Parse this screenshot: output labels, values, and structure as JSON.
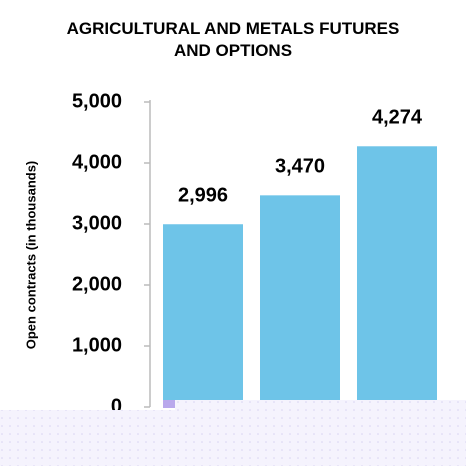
{
  "chart_data": {
    "type": "bar",
    "title": "AGRICULTURAL AND METALS FUTURES AND OPTIONS",
    "y_label": "Open contracts (in thousands)",
    "categories": [
      null,
      null,
      null
    ],
    "values": [
      2996,
      3470,
      4274
    ],
    "value_labels": [
      "2,996",
      "3,470",
      "4,274"
    ],
    "color": "#6ec4e8",
    "ylim": [
      0,
      5000
    ],
    "yticks": [
      0,
      {
        "value": 1000,
        "label": "1,000"
      },
      {
        "value": 2000,
        "label": "2,000"
      },
      {
        "value": 3000,
        "label": "3,000"
      },
      {
        "value": 4000,
        "label": "4,000"
      },
      {
        "value": 5000,
        "label": "5,000"
      }
    ],
    "grid": false
  }
}
